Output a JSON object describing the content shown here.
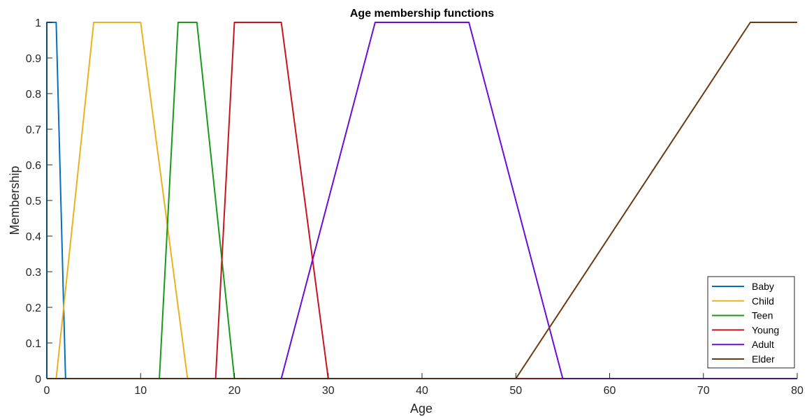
{
  "chart_data": {
    "type": "line",
    "title": "Age membership functions",
    "xlabel": "Age",
    "ylabel": "Membership",
    "xlim": [
      0,
      80
    ],
    "ylim": [
      0,
      1
    ],
    "x_ticks": [
      0,
      10,
      20,
      30,
      40,
      50,
      60,
      70,
      80
    ],
    "y_ticks": [
      0,
      0.1,
      0.2,
      0.3,
      0.4,
      0.5,
      0.6,
      0.7,
      0.8,
      0.9,
      1
    ],
    "grid": false,
    "legend_position": "bottom-right",
    "series": [
      {
        "name": "Baby",
        "color": "#0072BD",
        "x": [
          0,
          0,
          1,
          2,
          80
        ],
        "y": [
          0,
          1,
          1,
          0,
          0
        ]
      },
      {
        "name": "Child",
        "color": "#EDB120",
        "x": [
          0,
          1,
          5,
          10,
          15,
          80
        ],
        "y": [
          0,
          0,
          1,
          1,
          0,
          0
        ]
      },
      {
        "name": "Teen",
        "color": "#1A9A1A",
        "x": [
          0,
          12,
          14,
          16,
          20,
          80
        ],
        "y": [
          0,
          0,
          1,
          1,
          0,
          0
        ]
      },
      {
        "name": "Young",
        "color": "#C8141E",
        "x": [
          0,
          18,
          20,
          25,
          30,
          80
        ],
        "y": [
          0,
          0,
          1,
          1,
          0,
          0
        ]
      },
      {
        "name": "Adult",
        "color": "#6A0DD9",
        "x": [
          0,
          25,
          35,
          45,
          55,
          80
        ],
        "y": [
          0,
          0,
          1,
          1,
          0,
          0
        ]
      },
      {
        "name": "Elder",
        "color": "#6B3A10",
        "x": [
          0,
          50,
          75,
          80
        ],
        "y": [
          0,
          0,
          1,
          1
        ]
      }
    ]
  }
}
